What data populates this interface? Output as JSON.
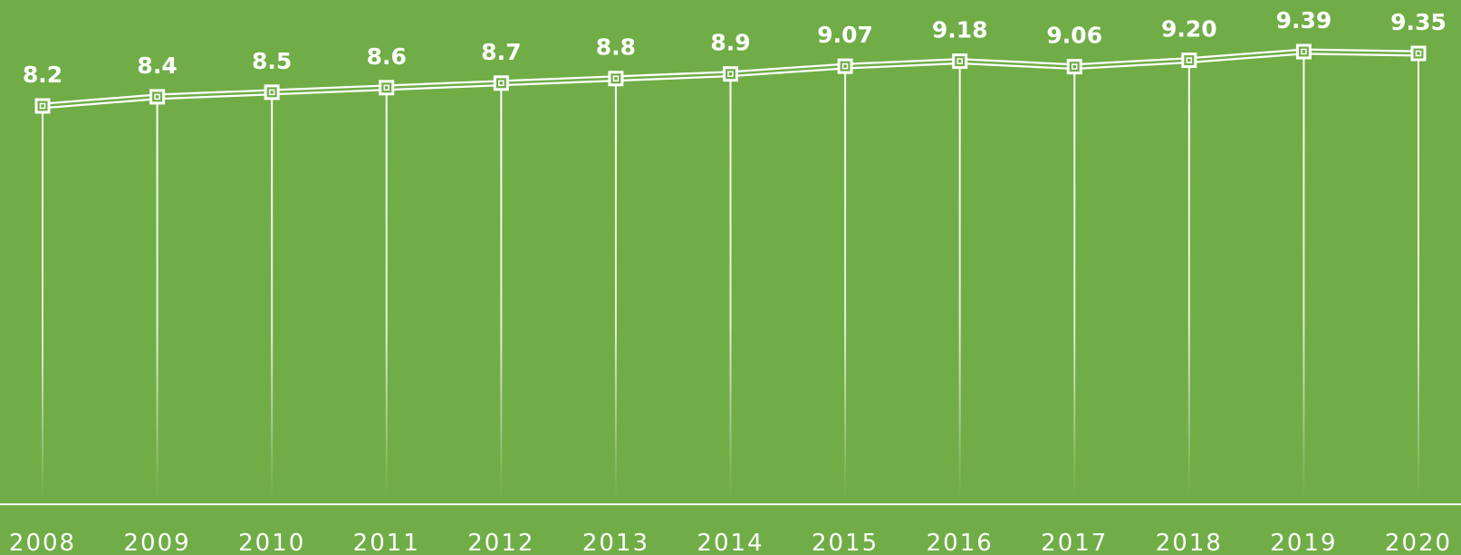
{
  "chart_data": {
    "type": "line",
    "categories": [
      "2008",
      "2009",
      "2010",
      "2011",
      "2012",
      "2013",
      "2014",
      "2015",
      "2016",
      "2017",
      "2018",
      "2019",
      "2020"
    ],
    "values": [
      8.2,
      8.4,
      8.5,
      8.6,
      8.7,
      8.8,
      8.9,
      9.07,
      9.18,
      9.06,
      9.2,
      9.39,
      9.35
    ],
    "value_labels": [
      "8.2",
      "8.4",
      "8.5",
      "8.6",
      "8.7",
      "8.8",
      "8.9",
      "9.07",
      "9.18",
      "9.06",
      "9.20",
      "9.39",
      "9.35"
    ],
    "color": "#ffffff",
    "background": "#70ad47"
  }
}
